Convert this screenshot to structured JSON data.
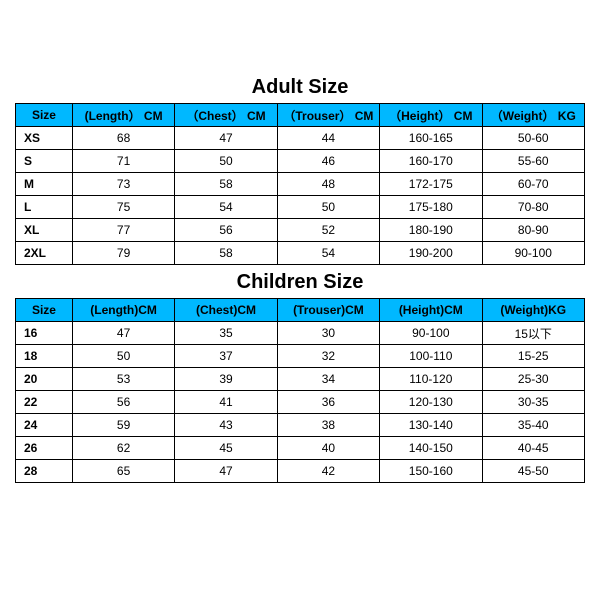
{
  "header_bg": "#00b8ff",
  "border_color": "#000000",
  "adult": {
    "title": "Adult Size",
    "columns": [
      "Size",
      "(Length） CM",
      "（Chest） CM",
      "（Trouser） CM",
      "（Height） CM",
      "（Weight） KG"
    ],
    "rows": [
      [
        "XS",
        "68",
        "47",
        "44",
        "160-165",
        "50-60"
      ],
      [
        "S",
        "71",
        "50",
        "46",
        "160-170",
        "55-60"
      ],
      [
        "M",
        "73",
        "58",
        "48",
        "172-175",
        "60-70"
      ],
      [
        "L",
        "75",
        "54",
        "50",
        "175-180",
        "70-80"
      ],
      [
        "XL",
        "77",
        "56",
        "52",
        "180-190",
        "80-90"
      ],
      [
        "2XL",
        "79",
        "58",
        "54",
        "190-200",
        "90-100"
      ]
    ]
  },
  "children": {
    "title": "Children Size",
    "columns": [
      "Size",
      "(Length)CM",
      "(Chest)CM",
      "(Trouser)CM",
      "(Height)CM",
      "(Weight)KG"
    ],
    "rows": [
      [
        "16",
        "47",
        "35",
        "30",
        "90-100",
        "15以下"
      ],
      [
        "18",
        "50",
        "37",
        "32",
        "100-110",
        "15-25"
      ],
      [
        "20",
        "53",
        "39",
        "34",
        "110-120",
        "25-30"
      ],
      [
        "22",
        "56",
        "41",
        "36",
        "120-130",
        "30-35"
      ],
      [
        "24",
        "59",
        "43",
        "38",
        "130-140",
        "35-40"
      ],
      [
        "26",
        "62",
        "45",
        "40",
        "140-150",
        "40-45"
      ],
      [
        "28",
        "65",
        "47",
        "42",
        "150-160",
        "45-50"
      ]
    ]
  }
}
